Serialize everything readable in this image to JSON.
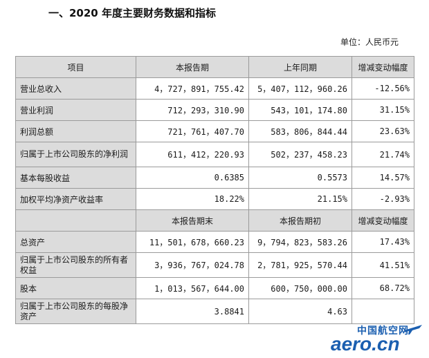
{
  "heading": "一、2020 年度主要财务数据和指标",
  "unit": "单位：人民币元",
  "header1": [
    "项目",
    "本报告期",
    "上年同期",
    "增减变动幅度"
  ],
  "rows1": [
    {
      "label": "营业总收入",
      "cur": "4，727，891，755.42",
      "prev": "5，407，112，960.26",
      "chg": "-12.56%"
    },
    {
      "label": "营业利润",
      "cur": "712，293，310.90",
      "prev": "543，101，174.80",
      "chg": "31.15%"
    },
    {
      "label": "利润总额",
      "cur": "721，761，407.70",
      "prev": "583，806，844.44",
      "chg": "23.63%"
    },
    {
      "label": "归属于上市公司股东的净利润",
      "cur": "611，412，220.93",
      "prev": "502，237，458.23",
      "chg": "21.74%"
    },
    {
      "label": "基本每股收益",
      "cur": "0.6385",
      "prev": "0.5573",
      "chg": "14.57%"
    },
    {
      "label": "加权平均净资产收益率",
      "cur": "18.22%",
      "prev": "21.15%",
      "chg": "-2.93%"
    }
  ],
  "header2": [
    "本报告期末",
    "本报告期初",
    "增减变动幅度"
  ],
  "rows2": [
    {
      "label": "总资产",
      "cur": "11，501，678，660.23",
      "prev": "9，794，823，583.26",
      "chg": "17.43%"
    },
    {
      "label": "归属于上市公司股东的所有者权益",
      "cur": "3，936，767，024.78",
      "prev": "2，781，925，570.44",
      "chg": "41.51%"
    },
    {
      "label": "股本",
      "cur": "1，013，567，644.00",
      "prev": "600，750，000.00",
      "chg": "68.72%"
    },
    {
      "label": "归属于上市公司股东的每股净资产",
      "cur": "3.8841",
      "prev": "4.63",
      "chg": ""
    }
  ],
  "watermark": {
    "cn": "中国航空网",
    "en": "aero.cn",
    "color": "#1b5fb0",
    "icon": "airplane-icon"
  }
}
